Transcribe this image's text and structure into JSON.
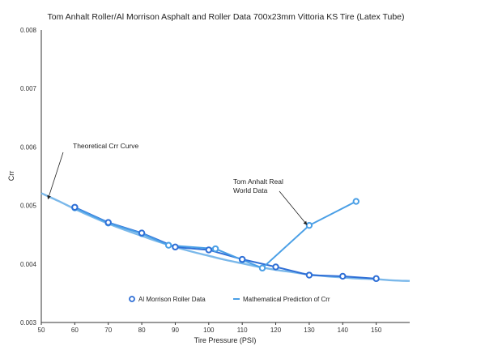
{
  "chart_data": {
    "type": "line",
    "title": "Tom Anhalt Roller/Al Morrison Asphalt and Roller Data 700x23mm Vittoria KS Tire (Latex Tube)",
    "xlabel": "Tire Pressure (PSI)",
    "ylabel": "Crr",
    "xlim": [
      50,
      160
    ],
    "ylim": [
      0.003,
      0.008
    ],
    "x_ticks": [
      "50",
      "60",
      "70",
      "80",
      "90",
      "100",
      "110",
      "120",
      "130",
      "140",
      "150"
    ],
    "y_ticks": [
      "0.003",
      "0.004",
      "0.005",
      "0.006",
      "0.007",
      "0.008"
    ],
    "grid": false,
    "legend_position": "bottom",
    "colors": {
      "theory": "#7ab8ea",
      "tom": "#4a9fe6",
      "al": "#2f6fd6"
    },
    "series": [
      {
        "key": "al",
        "name": "Al Morrison Roller Data",
        "legend": true,
        "x": [
          60,
          70,
          80,
          90,
          100,
          110,
          120,
          130,
          140,
          150
        ],
        "y": [
          0.00497,
          0.00471,
          0.00453,
          0.00429,
          0.00424,
          0.00408,
          0.00395,
          0.00381,
          0.00379,
          0.00375
        ]
      },
      {
        "key": "tom",
        "name": "",
        "legend": false,
        "x": [
          60,
          70,
          80,
          88,
          102,
          110,
          116,
          130,
          144
        ],
        "y": [
          0.00496,
          0.0047,
          0.00452,
          0.00432,
          0.00426,
          0.00407,
          0.00393,
          0.00466,
          0.00507
        ]
      },
      {
        "key": "theory",
        "name": "Mathematical Prediction of Crr",
        "legend": true,
        "x": [
          50,
          55,
          60,
          65,
          70,
          75,
          80,
          85,
          90,
          95,
          100,
          105,
          110,
          115,
          120,
          125,
          130,
          135,
          140,
          145,
          150,
          155,
          160
        ],
        "y": [
          0.00521,
          0.00508,
          0.00494,
          0.00481,
          0.00469,
          0.00458,
          0.00448,
          0.00438,
          0.00429,
          0.00421,
          0.00414,
          0.00407,
          0.00401,
          0.00395,
          0.0039,
          0.00386,
          0.00382,
          0.00379,
          0.00377,
          0.00375,
          0.00374,
          0.00372,
          0.00371
        ]
      }
    ],
    "annotations": [
      {
        "key": "theoretical",
        "lines": [
          "Theoretical Crr Curve"
        ],
        "points_to": {
          "x": 52,
          "y": 0.00511
        }
      },
      {
        "key": "tom",
        "lines": [
          "Tom Anhalt Real",
          "World Data"
        ],
        "points_to": {
          "x": 129.3,
          "y": 0.00467
        }
      }
    ]
  }
}
